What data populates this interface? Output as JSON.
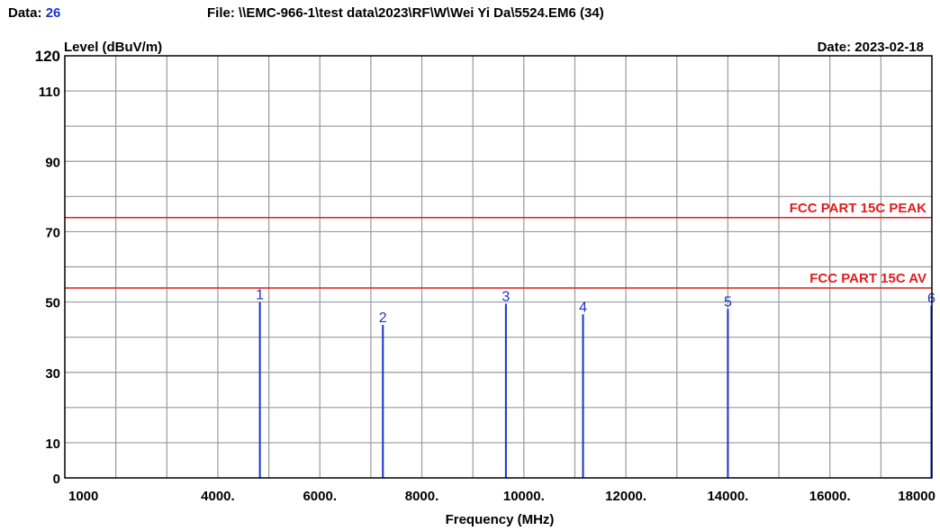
{
  "header": {
    "data_label": "Data:",
    "data_value": "26",
    "file_label": "File: \\\\EMC-966-1\\test data\\2023\\RF\\W\\Wei Yi Da\\5524.EM6  (34)",
    "date_label": "Date: 2023-02-18"
  },
  "colors": {
    "limit_line": "#e01c1c",
    "marker": "#1a33cc",
    "grid": "#9a9a9a"
  },
  "chart_data": {
    "type": "bar",
    "ylabel": "Level (dBuV/m)",
    "xlabel": "Frequency (MHz)",
    "ylim": [
      0,
      120
    ],
    "y_ticks": [
      0,
      10,
      30,
      50,
      70,
      90,
      110,
      120
    ],
    "y_tick_labels": [
      "0",
      "10",
      "30",
      "50",
      "70",
      "90",
      "110",
      "120"
    ],
    "x_range": [
      1000,
      18000
    ],
    "x_ticks": [
      1000,
      4000,
      6000,
      8000,
      10000,
      12000,
      14000,
      16000,
      18000
    ],
    "x_tick_labels": [
      "1000",
      "4000.",
      "6000.",
      "8000.",
      "10000.",
      "12000.",
      "14000.",
      "16000.",
      "18000"
    ],
    "x_gridlines": [
      2000,
      3000,
      4000,
      5000,
      6000,
      7000,
      8000,
      9000,
      10000,
      11000,
      12000,
      13000,
      14000,
      15000,
      16000,
      17000
    ],
    "y_gridlines": [
      10,
      20,
      30,
      40,
      50,
      60,
      70,
      80,
      90,
      100,
      110
    ],
    "grid": true,
    "limit_lines": [
      {
        "name": "FCC PART 15C PEAK",
        "value": 74
      },
      {
        "name": "FCC PART 15C  AV",
        "value": 54
      }
    ],
    "markers": [
      {
        "label": "1",
        "x": 4824,
        "y": 50.0
      },
      {
        "label": "2",
        "x": 7236,
        "y": 43.5
      },
      {
        "label": "3",
        "x": 9648,
        "y": 49.5
      },
      {
        "label": "4",
        "x": 11160,
        "y": 46.5
      },
      {
        "label": "5",
        "x": 14000,
        "y": 48.0
      },
      {
        "label": "6",
        "x": 17990,
        "y": 49.0
      }
    ]
  }
}
